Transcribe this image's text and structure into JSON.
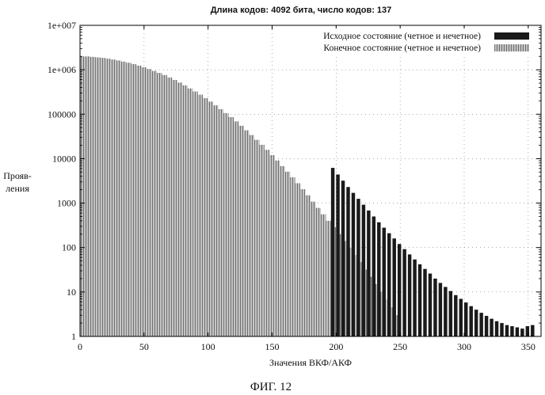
{
  "chart_data": {
    "type": "bar",
    "title": "Длина кодов: 4092 бита, число кодов: 137",
    "xlabel": "Значения ВКФ/АКФ",
    "ylabel_lines": [
      "Прояв-",
      "ления"
    ],
    "caption": "ФИГ. 12",
    "x_range": [
      0,
      360
    ],
    "y_scale": "log",
    "y_range": [
      1,
      10000000
    ],
    "x_ticks": [
      0,
      50,
      100,
      150,
      200,
      250,
      300,
      350
    ],
    "y_ticks": [
      {
        "value": 1,
        "label": "1"
      },
      {
        "value": 10,
        "label": "10"
      },
      {
        "value": 100,
        "label": "100"
      },
      {
        "value": 1000,
        "label": "1000"
      },
      {
        "value": 10000,
        "label": "10000"
      },
      {
        "value": 100000,
        "label": "100000"
      },
      {
        "value": 1000000,
        "label": "1e+006"
      },
      {
        "value": 10000000,
        "label": "1e+007"
      }
    ],
    "grid": true,
    "legend_position": "top-right",
    "series": [
      {
        "name": "Исходное состояние (четное и нечетное)",
        "color": "#1a1a1a",
        "style": "solid",
        "bin_width": 4,
        "points": [
          [
            196,
            6200
          ],
          [
            200,
            4400
          ],
          [
            204,
            3200
          ],
          [
            208,
            2300
          ],
          [
            212,
            1700
          ],
          [
            216,
            1250
          ],
          [
            220,
            920
          ],
          [
            224,
            680
          ],
          [
            228,
            500
          ],
          [
            232,
            370
          ],
          [
            236,
            280
          ],
          [
            240,
            210
          ],
          [
            244,
            160
          ],
          [
            248,
            120
          ],
          [
            252,
            92
          ],
          [
            256,
            70
          ],
          [
            260,
            54
          ],
          [
            264,
            42
          ],
          [
            268,
            33
          ],
          [
            272,
            26
          ],
          [
            276,
            20
          ],
          [
            280,
            16
          ],
          [
            284,
            13
          ],
          [
            288,
            10.5
          ],
          [
            292,
            8.5
          ],
          [
            296,
            7
          ],
          [
            300,
            5.8
          ],
          [
            304,
            4.8
          ],
          [
            308,
            4
          ],
          [
            312,
            3.4
          ],
          [
            316,
            2.9
          ],
          [
            320,
            2.5
          ],
          [
            324,
            2.2
          ],
          [
            328,
            2
          ],
          [
            332,
            1.8
          ],
          [
            336,
            1.7
          ],
          [
            340,
            1.6
          ],
          [
            344,
            1.5
          ],
          [
            348,
            1.7
          ],
          [
            352,
            1.8
          ]
        ]
      },
      {
        "name": "Конечное состояние (четное и нечетное)",
        "color": "#8a8a8a",
        "style": "hatched",
        "bin_width": 4,
        "points": [
          [
            0,
            2000000
          ],
          [
            4,
            2000000
          ],
          [
            8,
            1950000
          ],
          [
            12,
            1900000
          ],
          [
            16,
            1850000
          ],
          [
            20,
            1780000
          ],
          [
            24,
            1700000
          ],
          [
            28,
            1620000
          ],
          [
            32,
            1530000
          ],
          [
            36,
            1440000
          ],
          [
            40,
            1340000
          ],
          [
            44,
            1240000
          ],
          [
            48,
            1140000
          ],
          [
            52,
            1040000
          ],
          [
            56,
            940000
          ],
          [
            60,
            850000
          ],
          [
            64,
            760000
          ],
          [
            68,
            670000
          ],
          [
            72,
            590000
          ],
          [
            76,
            515000
          ],
          [
            80,
            445000
          ],
          [
            84,
            380000
          ],
          [
            88,
            325000
          ],
          [
            92,
            275000
          ],
          [
            96,
            230000
          ],
          [
            100,
            192000
          ],
          [
            104,
            158000
          ],
          [
            108,
            130000
          ],
          [
            112,
            106000
          ],
          [
            116,
            86000
          ],
          [
            120,
            69000
          ],
          [
            124,
            55000
          ],
          [
            128,
            43500
          ],
          [
            132,
            34000
          ],
          [
            136,
            26500
          ],
          [
            140,
            20500
          ],
          [
            144,
            15800
          ],
          [
            148,
            12000
          ],
          [
            152,
            9100
          ],
          [
            156,
            6800
          ],
          [
            160,
            5100
          ],
          [
            164,
            3800
          ],
          [
            168,
            2800
          ],
          [
            172,
            2050
          ],
          [
            176,
            1500
          ],
          [
            180,
            1080
          ],
          [
            184,
            780
          ],
          [
            188,
            560
          ],
          [
            192,
            400
          ],
          [
            196,
            285
          ],
          [
            200,
            200
          ],
          [
            204,
            140
          ],
          [
            208,
            98
          ],
          [
            212,
            68
          ],
          [
            216,
            47
          ],
          [
            220,
            32
          ],
          [
            224,
            22
          ],
          [
            228,
            15
          ],
          [
            232,
            10
          ],
          [
            236,
            6.8
          ],
          [
            240,
            4.5
          ],
          [
            244,
            3
          ]
        ]
      }
    ]
  }
}
